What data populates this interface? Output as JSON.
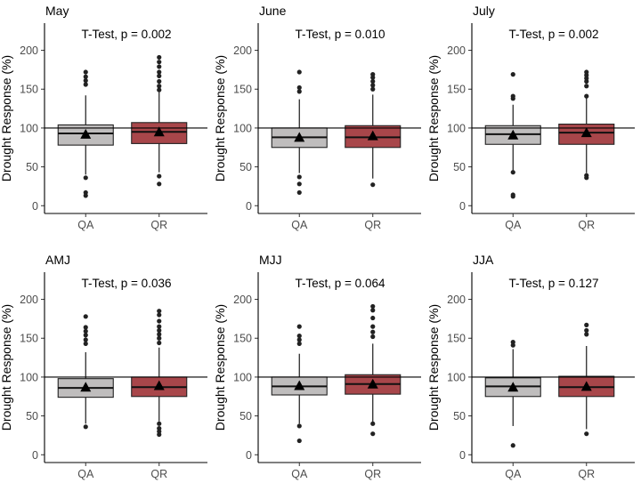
{
  "chart_data": {
    "type": "box",
    "layout": "grid-2x3",
    "ylabel": "Drought Response (%)",
    "categories": [
      "QA",
      "QR"
    ],
    "ylim": [
      -10,
      235
    ],
    "yticks": [
      0,
      50,
      100,
      150,
      200
    ],
    "reference_line": 100,
    "box_colors": {
      "QA": "#bfbdbd",
      "QR": "#a8464a"
    },
    "panels": [
      {
        "title": "May",
        "annotation": "T-Test, p = 0.002",
        "boxes": [
          {
            "category": "QA",
            "q1": 78,
            "median": 93,
            "q3": 104,
            "whisker_low": 40,
            "whisker_high": 142,
            "mean": 92,
            "outliers": [
              172,
              166,
              161,
              156,
              36,
              17,
              13
            ]
          },
          {
            "category": "QR",
            "q1": 80,
            "median": 95,
            "q3": 107,
            "whisker_low": 43,
            "whisker_high": 146,
            "mean": 95,
            "outliers": [
              191,
              185,
              179,
              172,
              167,
              160,
              154,
              149,
              38,
              28
            ]
          }
        ]
      },
      {
        "title": "June",
        "annotation": "T-Test, p = 0.010",
        "boxes": [
          {
            "category": "QA",
            "q1": 75,
            "median": 88,
            "q3": 100,
            "whisker_low": 42,
            "whisker_high": 137,
            "mean": 88,
            "outliers": [
              172,
              152,
              147,
              37,
              28,
              17
            ]
          },
          {
            "category": "QR",
            "q1": 75,
            "median": 88,
            "q3": 103,
            "whisker_low": 35,
            "whisker_high": 143,
            "mean": 90,
            "outliers": [
              169,
              165,
              160,
              155,
              150,
              27
            ]
          }
        ]
      },
      {
        "title": "July",
        "annotation": "T-Test, p = 0.002",
        "boxes": [
          {
            "category": "QA",
            "q1": 79,
            "median": 92,
            "q3": 103,
            "whisker_low": 45,
            "whisker_high": 130,
            "mean": 91,
            "outliers": [
              169,
              141,
              138,
              43,
              14,
              12
            ]
          },
          {
            "category": "QR",
            "q1": 79,
            "median": 94,
            "q3": 105,
            "whisker_low": 42,
            "whisker_high": 143,
            "mean": 94,
            "outliers": [
              172,
              168,
              164,
              160,
              154,
              141,
              39,
              36
            ]
          }
        ]
      },
      {
        "title": "AMJ",
        "annotation": "T-Test, p = 0.036",
        "boxes": [
          {
            "category": "QA",
            "q1": 74,
            "median": 86,
            "q3": 98,
            "whisker_low": 40,
            "whisker_high": 132,
            "mean": 87,
            "outliers": [
              178,
              164,
              159,
              154,
              148,
              143,
              36
            ]
          },
          {
            "category": "QR",
            "q1": 75,
            "median": 87,
            "q3": 100,
            "whisker_low": 43,
            "whisker_high": 138,
            "mean": 89,
            "outliers": [
              185,
              180,
              172,
              165,
              160,
              155,
              150,
              144,
              40,
              34,
              30,
              26
            ]
          }
        ]
      },
      {
        "title": "MJJ",
        "annotation": "T-Test, p = 0.064",
        "boxes": [
          {
            "category": "QA",
            "q1": 77,
            "median": 88,
            "q3": 100,
            "whisker_low": 40,
            "whisker_high": 130,
            "mean": 89,
            "outliers": [
              165,
              153,
              148,
              143,
              37,
              18
            ]
          },
          {
            "category": "QR",
            "q1": 78,
            "median": 91,
            "q3": 103,
            "whisker_low": 42,
            "whisker_high": 143,
            "mean": 91,
            "outliers": [
              191,
              186,
              176,
              165,
              158,
              152,
              40,
              27
            ]
          }
        ]
      },
      {
        "title": "JJA",
        "annotation": "T-Test, p = 0.127",
        "boxes": [
          {
            "category": "QA",
            "q1": 75,
            "median": 88,
            "q3": 99,
            "whisker_low": 37,
            "whisker_high": 136,
            "mean": 87,
            "outliers": [
              145,
              141,
              12
            ]
          },
          {
            "category": "QR",
            "q1": 75,
            "median": 87,
            "q3": 101,
            "whisker_low": 33,
            "whisker_high": 140,
            "mean": 88,
            "outliers": [
              167,
              160,
              155,
              27
            ]
          }
        ]
      }
    ]
  }
}
